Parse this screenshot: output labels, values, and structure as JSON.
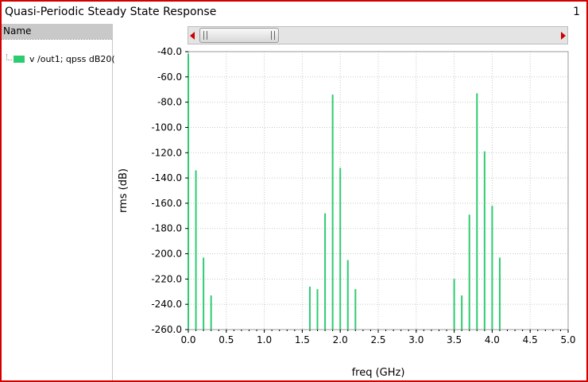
{
  "window": {
    "title": "Quasi-Periodic Steady State Response",
    "page_number": "1"
  },
  "sidebar": {
    "header": "Name"
  },
  "colors": {
    "trace": "#2ecc71",
    "frame": "#d40000",
    "grid": "#c8c8c8"
  },
  "chart_data": {
    "type": "bar",
    "xlabel": "freq (GHz)",
    "ylabel": "rms (dB)",
    "xlim": [
      0.0,
      5.0
    ],
    "ylim": [
      -260.0,
      -40.0
    ],
    "x_ticks": [
      "0.0",
      "0.5",
      "1.0",
      "1.5",
      "2.0",
      "2.5",
      "3.0",
      "3.5",
      "4.0",
      "4.5",
      "5.0"
    ],
    "y_ticks": [
      "-40.0",
      "-60.0",
      "-80.0",
      "-100.0",
      "-120.0",
      "-140.0",
      "-160.0",
      "-180.0",
      "-200.0",
      "-220.0",
      "-240.0",
      "-260.0"
    ],
    "grid": true,
    "series": [
      {
        "name": "v /out1; qpss dB20(",
        "points": [
          {
            "x": 0.0,
            "y": -42
          },
          {
            "x": 0.1,
            "y": -134
          },
          {
            "x": 0.2,
            "y": -203
          },
          {
            "x": 0.3,
            "y": -233
          },
          {
            "x": 1.6,
            "y": -226
          },
          {
            "x": 1.7,
            "y": -228
          },
          {
            "x": 1.8,
            "y": -168
          },
          {
            "x": 1.9,
            "y": -74
          },
          {
            "x": 2.0,
            "y": -132
          },
          {
            "x": 2.1,
            "y": -205
          },
          {
            "x": 2.2,
            "y": -228
          },
          {
            "x": 3.5,
            "y": -220
          },
          {
            "x": 3.6,
            "y": -233
          },
          {
            "x": 3.7,
            "y": -169
          },
          {
            "x": 3.8,
            "y": -73
          },
          {
            "x": 3.9,
            "y": -119
          },
          {
            "x": 4.0,
            "y": -162
          },
          {
            "x": 4.1,
            "y": -203
          }
        ]
      }
    ]
  }
}
